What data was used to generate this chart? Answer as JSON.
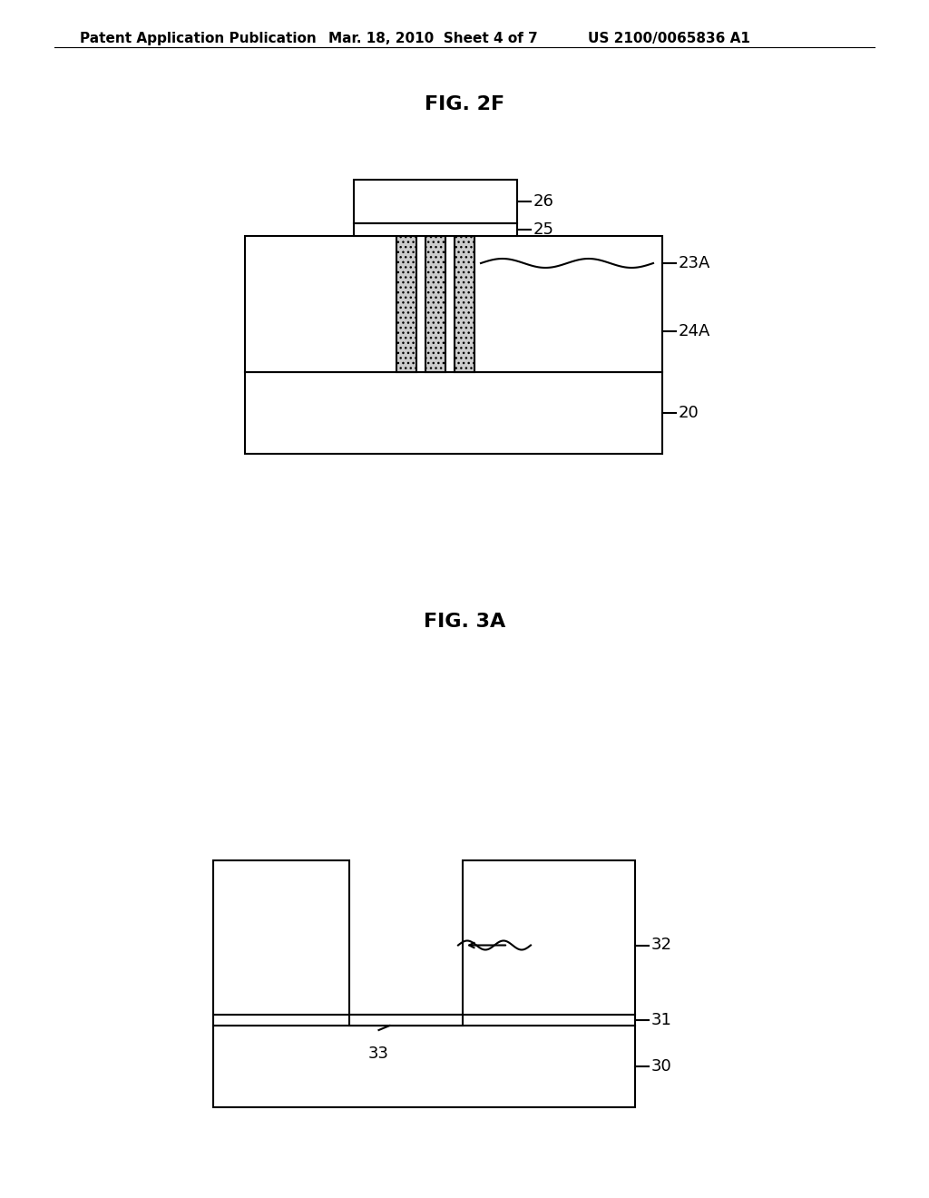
{
  "bg_color": "#ffffff",
  "header_left": "Patent Application Publication",
  "header_mid": "Mar. 18, 2010  Sheet 4 of 7",
  "header_right": "US 2100/0065836 A1",
  "fig1_title": "FIG. 2F",
  "fig2_title": "FIG. 3A",
  "line_color": "#000000",
  "label_fontsize": 13,
  "header_fontsize": 11,
  "title_fontsize": 16
}
